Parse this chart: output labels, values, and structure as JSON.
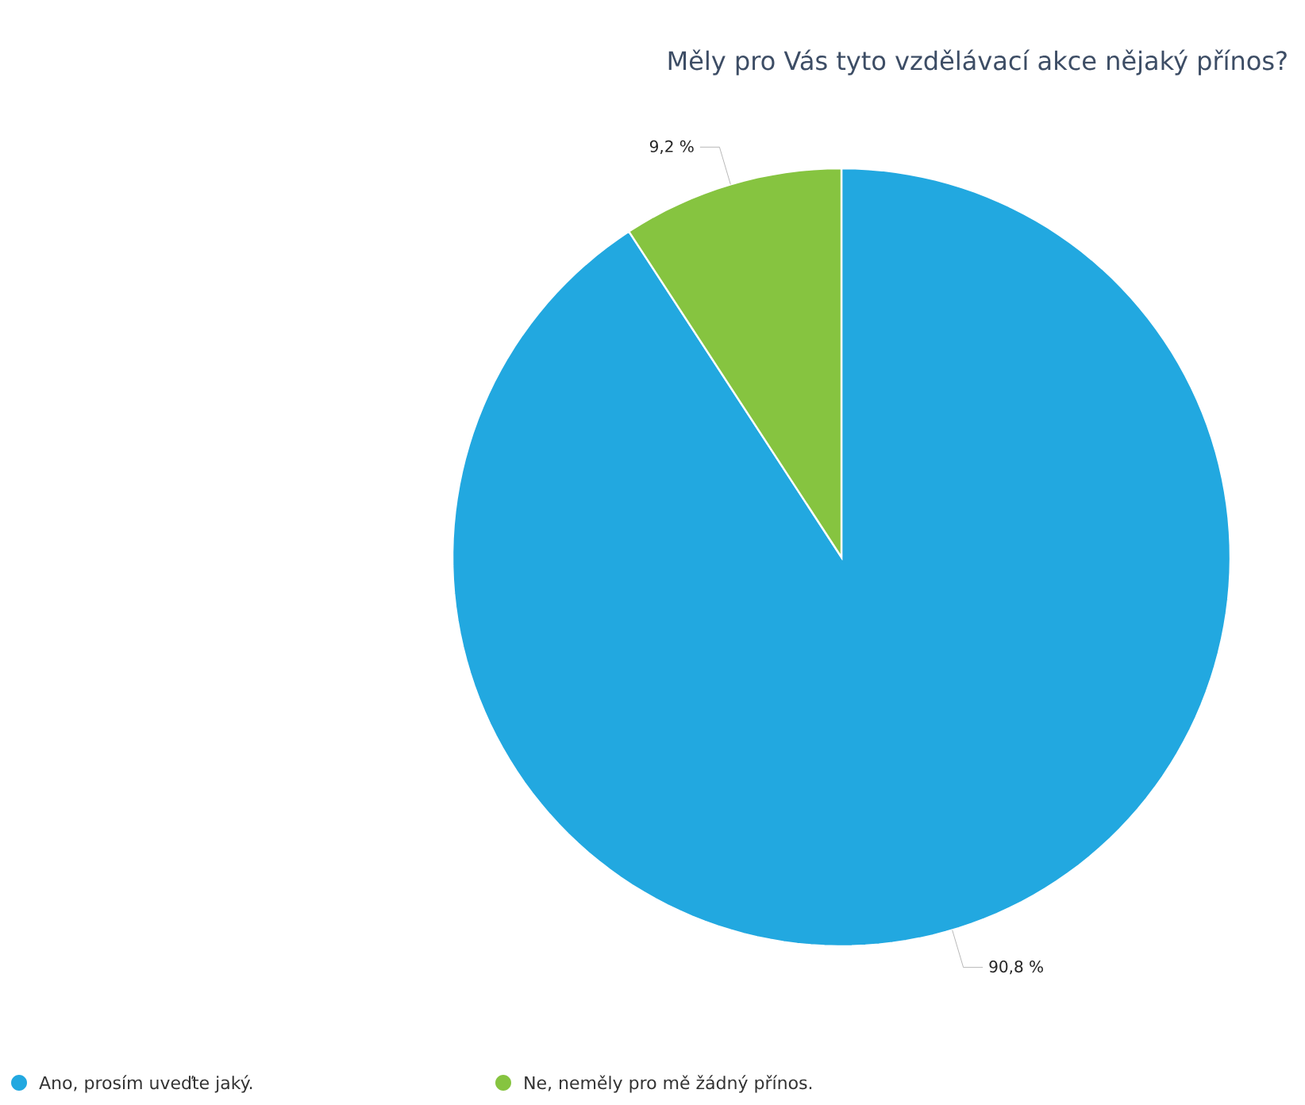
{
  "chart_data": {
    "type": "pie",
    "title": "Měly pro Vás tyto vzdělávací akce nějaký přínos?",
    "categories": [
      "Ano, prosím uveďte jaký.",
      "Ne, neměly pro mě žádný přínos."
    ],
    "values": [
      90.8,
      9.2
    ],
    "value_labels": [
      "90,8 %",
      "9,2 %"
    ],
    "colors": [
      "#22a8e0",
      "#86c440"
    ],
    "legend": "bottom left"
  }
}
